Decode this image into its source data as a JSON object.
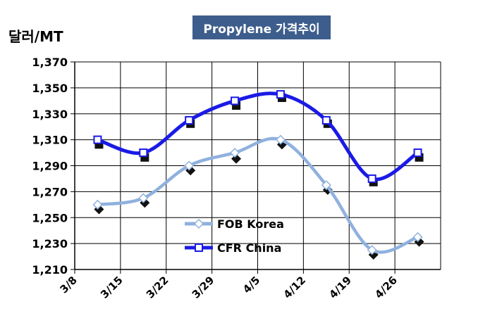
{
  "chart_data": {
    "type": "line",
    "title": "Propylene 가격추이",
    "ylabel": "달러/MT",
    "xlabel": "",
    "categories": [
      "3/8",
      "3/15",
      "3/22",
      "3/29",
      "4/5",
      "4/12",
      "4/19",
      "4/26"
    ],
    "ylim": [
      1210,
      1370
    ],
    "yticks": [
      1210,
      1230,
      1250,
      1270,
      1290,
      1310,
      1330,
      1350,
      1370
    ],
    "ytick_labels": [
      "1,210",
      "1,230",
      "1,250",
      "1,270",
      "1,290",
      "1,310",
      "1,330",
      "1,350",
      "1,370"
    ],
    "grid": true,
    "legend_position": "bottom-center",
    "series": [
      {
        "name": "FOB Korea",
        "color": "#8fb1de",
        "marker": "diamond",
        "values": [
          1260,
          1265,
          1290,
          1300,
          1310,
          1275,
          1225,
          1235
        ],
        "shadow_values": [
          1258,
          1263,
          1288,
          1297,
          1308,
          1273,
          1223,
          1233
        ]
      },
      {
        "name": "CFR China",
        "color": "#1a1ae6",
        "marker": "square",
        "values": [
          1310,
          1300,
          1325,
          1340,
          1345,
          1325,
          1280,
          1300
        ],
        "shadow_values": [
          1308,
          1298,
          1324,
          1338,
          1344,
          1324,
          1279,
          1298
        ]
      }
    ]
  }
}
